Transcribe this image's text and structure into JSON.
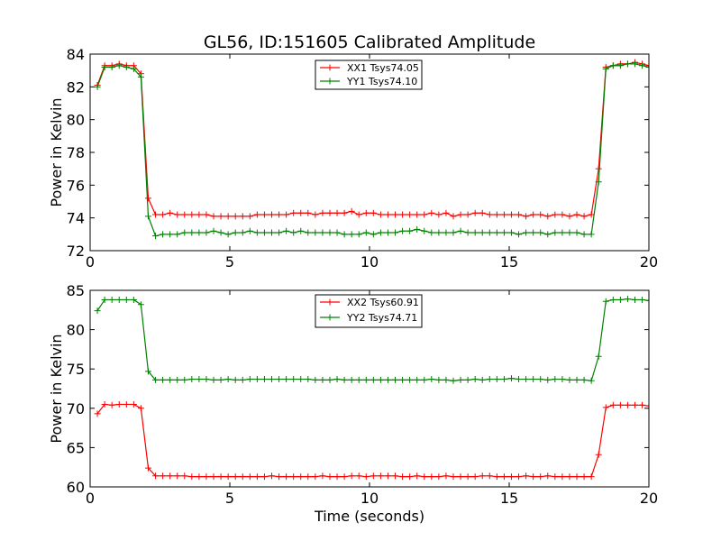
{
  "chart_data": [
    {
      "type": "line",
      "title": "GL56, ID:151605 Calibrated Amplitude",
      "xlabel": "",
      "ylabel": "Power in Kelvin",
      "xlim": [
        0,
        20
      ],
      "ylim": [
        72,
        84
      ],
      "xticks": [
        0,
        5,
        10,
        15,
        20
      ],
      "yticks": [
        72,
        74,
        76,
        78,
        80,
        82,
        84
      ],
      "legend_position": "top-center",
      "grid": false,
      "series": [
        {
          "name": "XX1 Tsys74.05",
          "color": "#ff0000",
          "x": [
            0.26,
            0.52,
            0.78,
            1.04,
            1.3,
            1.56,
            1.82,
            2.08,
            2.34,
            2.6,
            2.86,
            3.12,
            3.38,
            3.64,
            3.9,
            4.16,
            4.42,
            4.68,
            4.94,
            5.2,
            5.46,
            5.72,
            5.98,
            6.24,
            6.5,
            6.76,
            7.02,
            7.28,
            7.54,
            7.8,
            8.06,
            8.32,
            8.58,
            8.84,
            9.1,
            9.36,
            9.62,
            9.88,
            10.14,
            10.4,
            10.66,
            10.92,
            11.18,
            11.44,
            11.7,
            11.96,
            12.22,
            12.48,
            12.74,
            13.0,
            13.26,
            13.52,
            13.78,
            14.04,
            14.3,
            14.56,
            14.82,
            15.08,
            15.34,
            15.6,
            15.86,
            16.12,
            16.38,
            16.64,
            16.9,
            17.16,
            17.42,
            17.68,
            17.94,
            18.2,
            18.46,
            18.72,
            18.98,
            19.24,
            19.5,
            19.76,
            20.0
          ],
          "values": [
            82.1,
            83.3,
            83.3,
            83.4,
            83.3,
            83.3,
            82.8,
            75.2,
            74.2,
            74.2,
            74.3,
            74.2,
            74.2,
            74.2,
            74.2,
            74.2,
            74.1,
            74.1,
            74.1,
            74.1,
            74.1,
            74.1,
            74.2,
            74.2,
            74.2,
            74.2,
            74.2,
            74.3,
            74.3,
            74.3,
            74.2,
            74.3,
            74.3,
            74.3,
            74.3,
            74.4,
            74.2,
            74.3,
            74.3,
            74.2,
            74.2,
            74.2,
            74.2,
            74.2,
            74.2,
            74.2,
            74.3,
            74.2,
            74.3,
            74.1,
            74.2,
            74.2,
            74.3,
            74.3,
            74.2,
            74.2,
            74.2,
            74.2,
            74.2,
            74.1,
            74.2,
            74.2,
            74.1,
            74.2,
            74.2,
            74.1,
            74.2,
            74.1,
            74.2,
            77.0,
            83.2,
            83.3,
            83.4,
            83.4,
            83.5,
            83.4,
            83.3
          ]
        },
        {
          "name": "YY1 Tsys74.10",
          "color": "#008000",
          "x": [
            0.26,
            0.52,
            0.78,
            1.04,
            1.3,
            1.56,
            1.82,
            2.08,
            2.34,
            2.6,
            2.86,
            3.12,
            3.38,
            3.64,
            3.9,
            4.16,
            4.42,
            4.68,
            4.94,
            5.2,
            5.46,
            5.72,
            5.98,
            6.24,
            6.5,
            6.76,
            7.02,
            7.28,
            7.54,
            7.8,
            8.06,
            8.32,
            8.58,
            8.84,
            9.1,
            9.36,
            9.62,
            9.88,
            10.14,
            10.4,
            10.66,
            10.92,
            11.18,
            11.44,
            11.7,
            11.96,
            12.22,
            12.48,
            12.74,
            13.0,
            13.26,
            13.52,
            13.78,
            14.04,
            14.3,
            14.56,
            14.82,
            15.08,
            15.34,
            15.6,
            15.86,
            16.12,
            16.38,
            16.64,
            16.9,
            17.16,
            17.42,
            17.68,
            17.94,
            18.2,
            18.46,
            18.72,
            18.98,
            19.24,
            19.5,
            19.76,
            20.0
          ],
          "values": [
            82.0,
            83.2,
            83.2,
            83.3,
            83.2,
            83.1,
            82.6,
            74.1,
            72.9,
            73.0,
            73.0,
            73.0,
            73.1,
            73.1,
            73.1,
            73.1,
            73.2,
            73.1,
            73.0,
            73.1,
            73.1,
            73.2,
            73.1,
            73.1,
            73.1,
            73.1,
            73.2,
            73.1,
            73.2,
            73.1,
            73.1,
            73.1,
            73.1,
            73.1,
            73.0,
            73.0,
            73.0,
            73.1,
            73.0,
            73.1,
            73.1,
            73.1,
            73.2,
            73.2,
            73.3,
            73.2,
            73.1,
            73.1,
            73.1,
            73.1,
            73.2,
            73.1,
            73.1,
            73.1,
            73.1,
            73.1,
            73.1,
            73.1,
            73.0,
            73.1,
            73.1,
            73.1,
            73.0,
            73.1,
            73.1,
            73.1,
            73.1,
            73.0,
            73.0,
            76.2,
            83.1,
            83.3,
            83.3,
            83.4,
            83.4,
            83.3,
            83.2
          ]
        }
      ]
    },
    {
      "type": "line",
      "title": "",
      "xlabel": "Time (seconds)",
      "ylabel": "Power in Kelvin",
      "xlim": [
        0,
        20
      ],
      "ylim": [
        60,
        85
      ],
      "xticks": [
        0,
        5,
        10,
        15,
        20
      ],
      "yticks": [
        60,
        65,
        70,
        75,
        80,
        85
      ],
      "legend_position": "top-center",
      "grid": false,
      "series": [
        {
          "name": "XX2 Tsys60.91",
          "color": "#ff0000",
          "x": [
            0.26,
            0.52,
            0.78,
            1.04,
            1.3,
            1.56,
            1.82,
            2.08,
            2.34,
            2.6,
            2.86,
            3.12,
            3.38,
            3.64,
            3.9,
            4.16,
            4.42,
            4.68,
            4.94,
            5.2,
            5.46,
            5.72,
            5.98,
            6.24,
            6.5,
            6.76,
            7.02,
            7.28,
            7.54,
            7.8,
            8.06,
            8.32,
            8.58,
            8.84,
            9.1,
            9.36,
            9.62,
            9.88,
            10.14,
            10.4,
            10.66,
            10.92,
            11.18,
            11.44,
            11.7,
            11.96,
            12.22,
            12.48,
            12.74,
            13.0,
            13.26,
            13.52,
            13.78,
            14.04,
            14.3,
            14.56,
            14.82,
            15.08,
            15.34,
            15.6,
            15.86,
            16.12,
            16.38,
            16.64,
            16.9,
            17.16,
            17.42,
            17.68,
            17.94,
            18.2,
            18.46,
            18.72,
            18.98,
            19.24,
            19.5,
            19.76,
            20.0
          ],
          "values": [
            69.3,
            70.5,
            70.4,
            70.5,
            70.5,
            70.5,
            70.0,
            62.4,
            61.4,
            61.4,
            61.4,
            61.4,
            61.4,
            61.3,
            61.3,
            61.3,
            61.3,
            61.3,
            61.3,
            61.3,
            61.3,
            61.3,
            61.3,
            61.3,
            61.4,
            61.3,
            61.3,
            61.3,
            61.3,
            61.3,
            61.3,
            61.4,
            61.3,
            61.3,
            61.3,
            61.4,
            61.4,
            61.3,
            61.4,
            61.4,
            61.4,
            61.4,
            61.3,
            61.3,
            61.4,
            61.3,
            61.3,
            61.3,
            61.4,
            61.3,
            61.3,
            61.3,
            61.3,
            61.4,
            61.4,
            61.3,
            61.3,
            61.3,
            61.3,
            61.4,
            61.3,
            61.3,
            61.4,
            61.3,
            61.3,
            61.3,
            61.3,
            61.3,
            61.3,
            64.1,
            70.1,
            70.4,
            70.4,
            70.4,
            70.4,
            70.4,
            70.3
          ]
        },
        {
          "name": "YY2 Tsys74.71",
          "color": "#008000",
          "x": [
            0.26,
            0.52,
            0.78,
            1.04,
            1.3,
            1.56,
            1.82,
            2.08,
            2.34,
            2.6,
            2.86,
            3.12,
            3.38,
            3.64,
            3.9,
            4.16,
            4.42,
            4.68,
            4.94,
            5.2,
            5.46,
            5.72,
            5.98,
            6.24,
            6.5,
            6.76,
            7.02,
            7.28,
            7.54,
            7.8,
            8.06,
            8.32,
            8.58,
            8.84,
            9.1,
            9.36,
            9.62,
            9.88,
            10.14,
            10.4,
            10.66,
            10.92,
            11.18,
            11.44,
            11.7,
            11.96,
            12.22,
            12.48,
            12.74,
            13.0,
            13.26,
            13.52,
            13.78,
            14.04,
            14.3,
            14.56,
            14.82,
            15.08,
            15.34,
            15.6,
            15.86,
            16.12,
            16.38,
            16.64,
            16.9,
            17.16,
            17.42,
            17.68,
            17.94,
            18.2,
            18.46,
            18.72,
            18.98,
            19.24,
            19.5,
            19.76,
            20.0
          ],
          "values": [
            82.4,
            83.8,
            83.8,
            83.8,
            83.8,
            83.8,
            83.2,
            74.7,
            73.6,
            73.6,
            73.6,
            73.6,
            73.6,
            73.7,
            73.7,
            73.7,
            73.6,
            73.6,
            73.7,
            73.6,
            73.6,
            73.7,
            73.7,
            73.7,
            73.7,
            73.7,
            73.7,
            73.7,
            73.7,
            73.7,
            73.6,
            73.6,
            73.6,
            73.7,
            73.6,
            73.6,
            73.6,
            73.6,
            73.6,
            73.6,
            73.6,
            73.6,
            73.6,
            73.6,
            73.6,
            73.6,
            73.7,
            73.6,
            73.6,
            73.5,
            73.6,
            73.6,
            73.7,
            73.6,
            73.7,
            73.7,
            73.7,
            73.8,
            73.7,
            73.7,
            73.7,
            73.7,
            73.6,
            73.7,
            73.7,
            73.6,
            73.6,
            73.6,
            73.5,
            76.6,
            83.6,
            83.8,
            83.8,
            83.9,
            83.8,
            83.8,
            83.7
          ]
        }
      ]
    }
  ]
}
